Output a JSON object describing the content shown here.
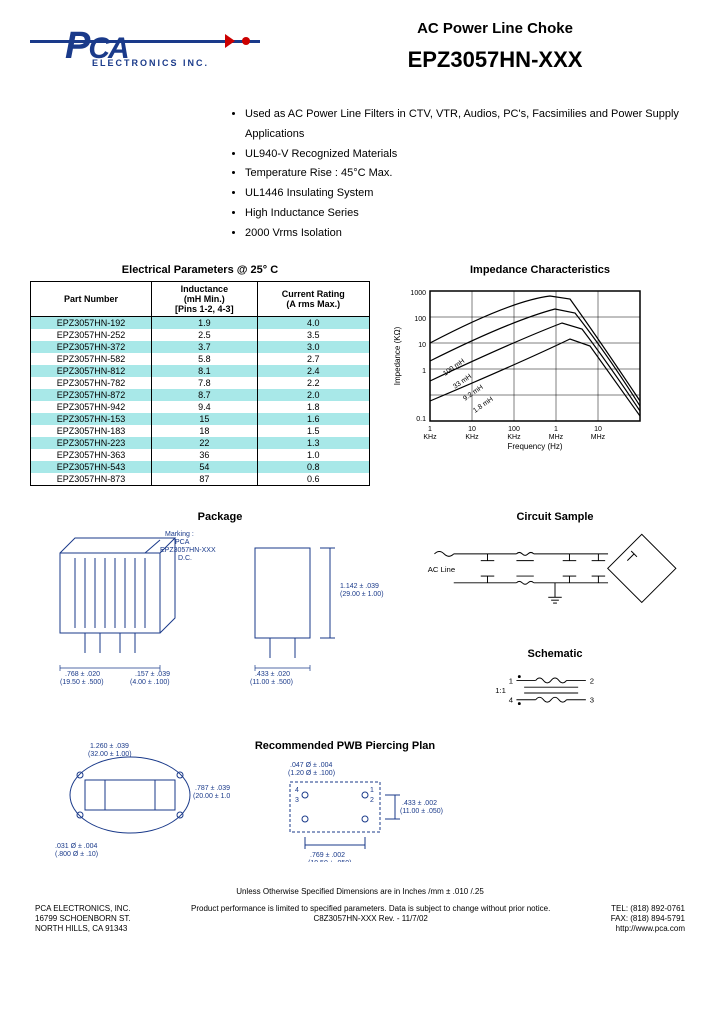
{
  "header": {
    "title_sub": "AC Power Line Choke",
    "title_main": "EPZ3057HN-XXX",
    "logo_text": "ELECTRONICS INC.",
    "logo_colors": {
      "blue": "#1a3a8a",
      "red": "#c00000"
    }
  },
  "bullets": [
    "Used as AC Power Line Filters in CTV, VTR, Audios, PC's, Facsimilies and Power Supply Applications",
    "UL940-V Recognized Materials",
    "Temperature Rise : 45°C Max.",
    "UL1446 Insulating System",
    "High Inductance Series",
    "2000 Vrms Isolation"
  ],
  "table": {
    "title": "Electrical Parameters @ 25° C",
    "headers": [
      "Part Number",
      "Inductance (mH Min.) [Pins 1-2, 4-3]",
      "Current Rating (A rms Max.)"
    ],
    "rows": [
      [
        "EPZ3057HN-192",
        "1.9",
        "4.0"
      ],
      [
        "EPZ3057HN-252",
        "2.5",
        "3.5"
      ],
      [
        "EPZ3057HN-372",
        "3.7",
        "3.0"
      ],
      [
        "EPZ3057HN-582",
        "5.8",
        "2.7"
      ],
      [
        "EPZ3057HN-812",
        "8.1",
        "2.4"
      ],
      [
        "EPZ3057HN-782",
        "7.8",
        "2.2"
      ],
      [
        "EPZ3057HN-872",
        "8.7",
        "2.0"
      ],
      [
        "EPZ3057HN-942",
        "9.4",
        "1.8"
      ],
      [
        "EPZ3057HN-153",
        "15",
        "1.6"
      ],
      [
        "EPZ3057HN-183",
        "18",
        "1.5"
      ],
      [
        "EPZ3057HN-223",
        "22",
        "1.3"
      ],
      [
        "EPZ3057HN-363",
        "36",
        "1.0"
      ],
      [
        "EPZ3057HN-543",
        "54",
        "0.8"
      ],
      [
        "EPZ3057HN-873",
        "87",
        "0.6"
      ]
    ],
    "alt_color": "#a8e8e8"
  },
  "chart": {
    "title": "Impedance Characteristics",
    "xlabel": "Frequency (Hz)",
    "ylabel": "Impedance (KΩ)",
    "xticks": [
      "1 KHz",
      "10 KHz",
      "100 KHz",
      "1 MHz",
      "10 MHz"
    ],
    "yticks": [
      "0.1",
      "1",
      "10",
      "100",
      "1000"
    ],
    "curves": [
      "100 mH",
      "33 mH",
      "9.2 mH",
      "1.8 mH"
    ]
  },
  "package": {
    "title": "Package",
    "marking": "Marking : PCA EPZ3057HN-XXX D.C.",
    "dims": {
      "width": ".768 ± .020 (19.50 ± .500)",
      "pin_gap": ".157 ± .039 (4.00 ± .100)",
      "height": "1.142 ± .039 (29.00 ± 1.00)",
      "depth": ".433 ± .020 (11.00 ± .500)",
      "body_w": "1.260 ± .039 (32.00 ± 1.00)",
      "body_h": ".787 ± .039 (20.00 ± 1.00)",
      "hole": ".031 Ø ± .004 (.800 Ø ± .10)"
    }
  },
  "pwb": {
    "title": "Recommended PWB Piercing Plan",
    "dims": {
      "hole": ".047 Ø ± .004 (1.20 Ø ± .100)",
      "h": ".433 ± .002 (11.00 ± .050)",
      "w": ".769 ± .002 (19.50 ± .050)"
    }
  },
  "circuit": {
    "title": "Circuit Sample",
    "label": "AC Line"
  },
  "schematic": {
    "title": "Schematic",
    "ratio": "1:1",
    "pins": [
      "1",
      "2",
      "3",
      "4"
    ]
  },
  "footer": {
    "note": "Unless Otherwise Specified Dimensions are in Inches /mm   ± .010 /.25",
    "left": "PCA ELECTRONICS, INC.\n16799 SCHOENBORN ST.\nNORTH HILLS, CA  91343",
    "center": "Product performance is limited to specified parameters.  Data is subject to change without prior notice.\nC8Z3057HN-XXX    Rev. -    11/7/02",
    "right": "TEL: (818) 892-0761\nFAX: (818) 894-5791\nhttp://www.pca.com"
  }
}
